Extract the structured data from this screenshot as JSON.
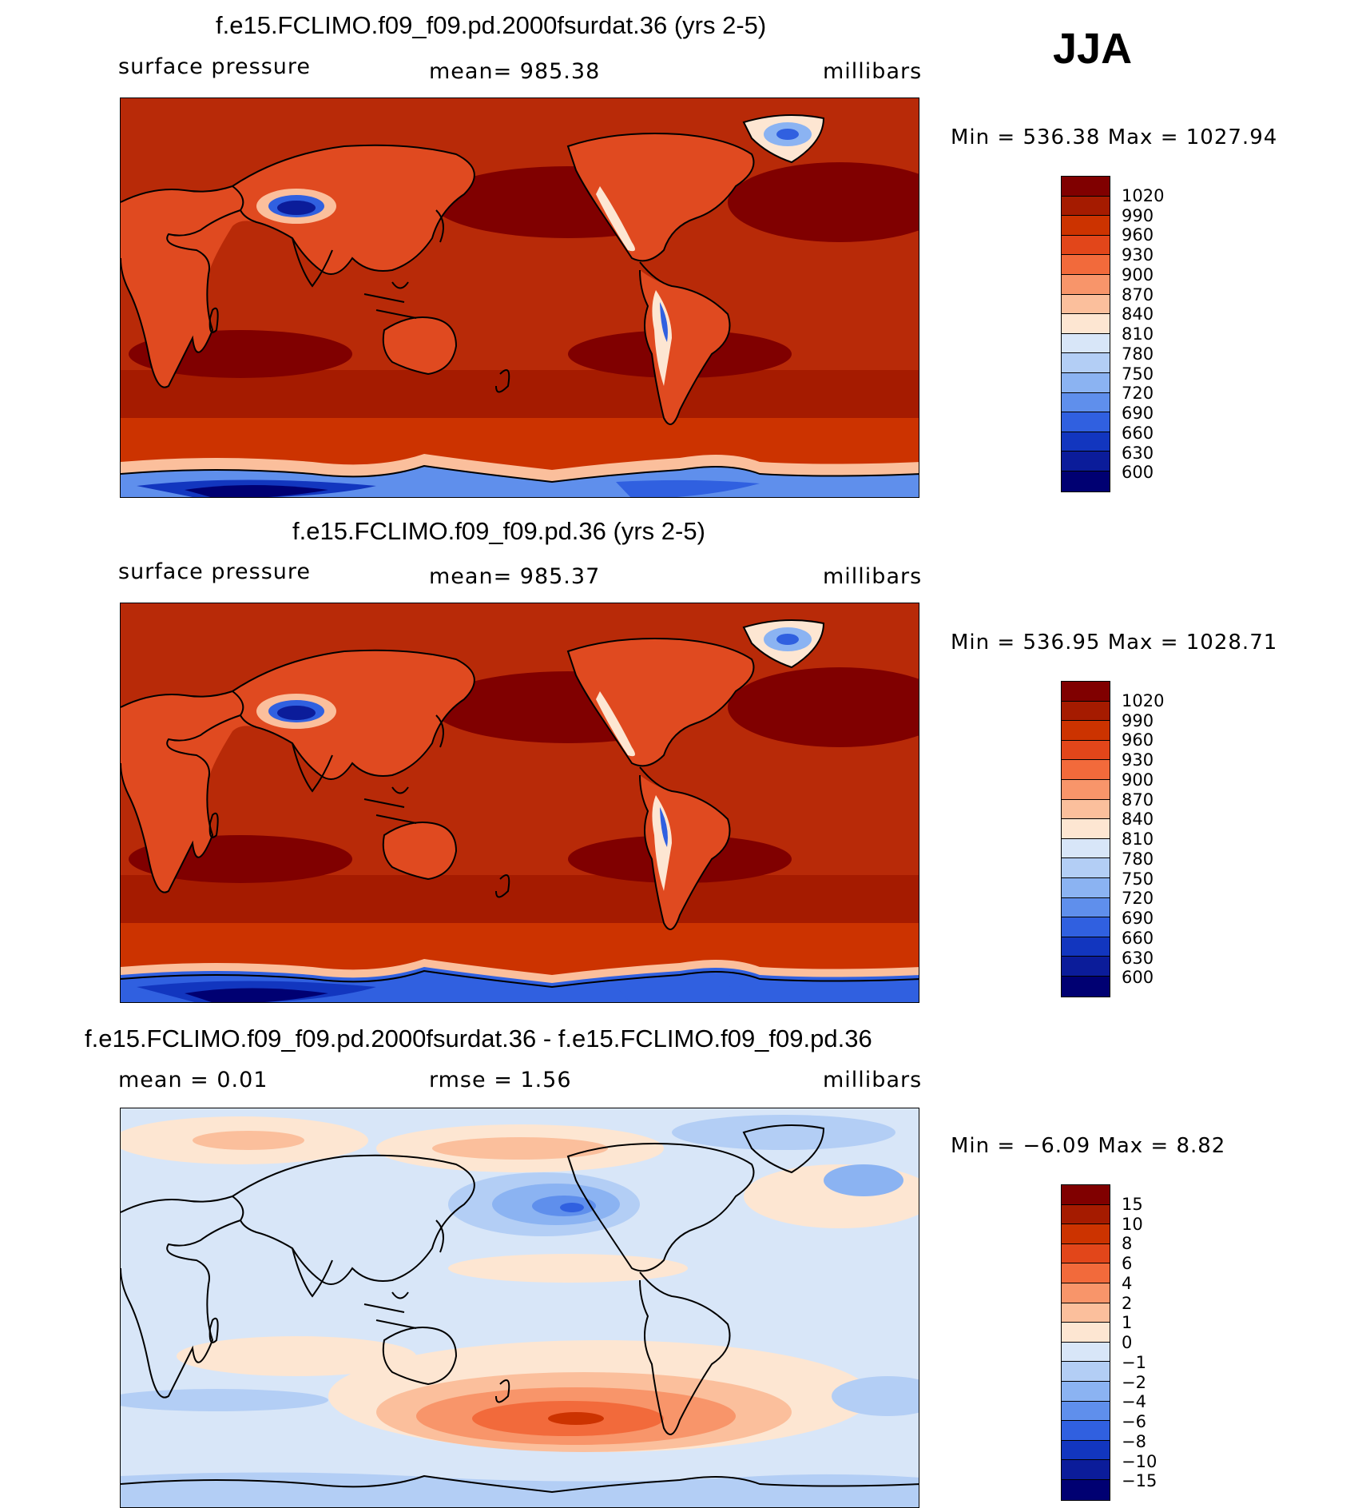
{
  "season": "JJA",
  "panels": [
    {
      "title": "f.e15.FCLIMO.f09_f09.pd.2000fsurdat.36 (yrs 2-5)",
      "left_label": "surface pressure",
      "center_label": "mean=  985.38",
      "right_label": "millibars",
      "minmax": "Min  =  536.38  Max  =  1027.94",
      "colorbar_labels": [
        "1020",
        "990",
        "960",
        "930",
        "900",
        "870",
        "840",
        "810",
        "780",
        "750",
        "720",
        "690",
        "660",
        "630",
        "600"
      ],
      "colorbar_colors": [
        "#800000",
        "#a51b00",
        "#cc3300",
        "#e2461a",
        "#f26a3b",
        "#f8956a",
        "#fbbf9c",
        "#fde6d2",
        "#d8e6f8",
        "#b3cef5",
        "#8bb3f2",
        "#5f8fec",
        "#3060e0",
        "#1236bf",
        "#0b1c9a",
        "#000072"
      ]
    },
    {
      "title": "f.e15.FCLIMO.f09_f09.pd.36 (yrs 2-5)",
      "left_label": "surface pressure",
      "center_label": "mean=  985.37",
      "right_label": "millibars",
      "minmax": "Min  =  536.95  Max  =  1028.71",
      "colorbar_labels": [
        "1020",
        "990",
        "960",
        "930",
        "900",
        "870",
        "840",
        "810",
        "780",
        "750",
        "720",
        "690",
        "660",
        "630",
        "600"
      ],
      "colorbar_colors": [
        "#800000",
        "#a51b00",
        "#cc3300",
        "#e2461a",
        "#f26a3b",
        "#f8956a",
        "#fbbf9c",
        "#fde6d2",
        "#d8e6f8",
        "#b3cef5",
        "#8bb3f2",
        "#5f8fec",
        "#3060e0",
        "#1236bf",
        "#0b1c9a",
        "#000072"
      ]
    },
    {
      "title": "f.e15.FCLIMO.f09_f09.pd.2000fsurdat.36 - f.e15.FCLIMO.f09_f09.pd.36",
      "left_label": "mean =     0.01",
      "center_label": "rmse =     1.56",
      "right_label": "millibars",
      "minmax": "Min  =    −6.09  Max  =      8.82",
      "colorbar_labels": [
        "15",
        "10",
        "8",
        "6",
        "4",
        "2",
        "1",
        "0",
        "−1",
        "−2",
        "−4",
        "−6",
        "−8",
        "−10",
        "−15"
      ],
      "colorbar_colors": [
        "#800000",
        "#a51b00",
        "#cc3300",
        "#e2461a",
        "#f26a3b",
        "#f8956a",
        "#fbbf9c",
        "#fde6d2",
        "#d8e6f8",
        "#b3cef5",
        "#8bb3f2",
        "#5f8fec",
        "#3060e0",
        "#1236bf",
        "#0b1c9a",
        "#000072"
      ]
    }
  ]
}
